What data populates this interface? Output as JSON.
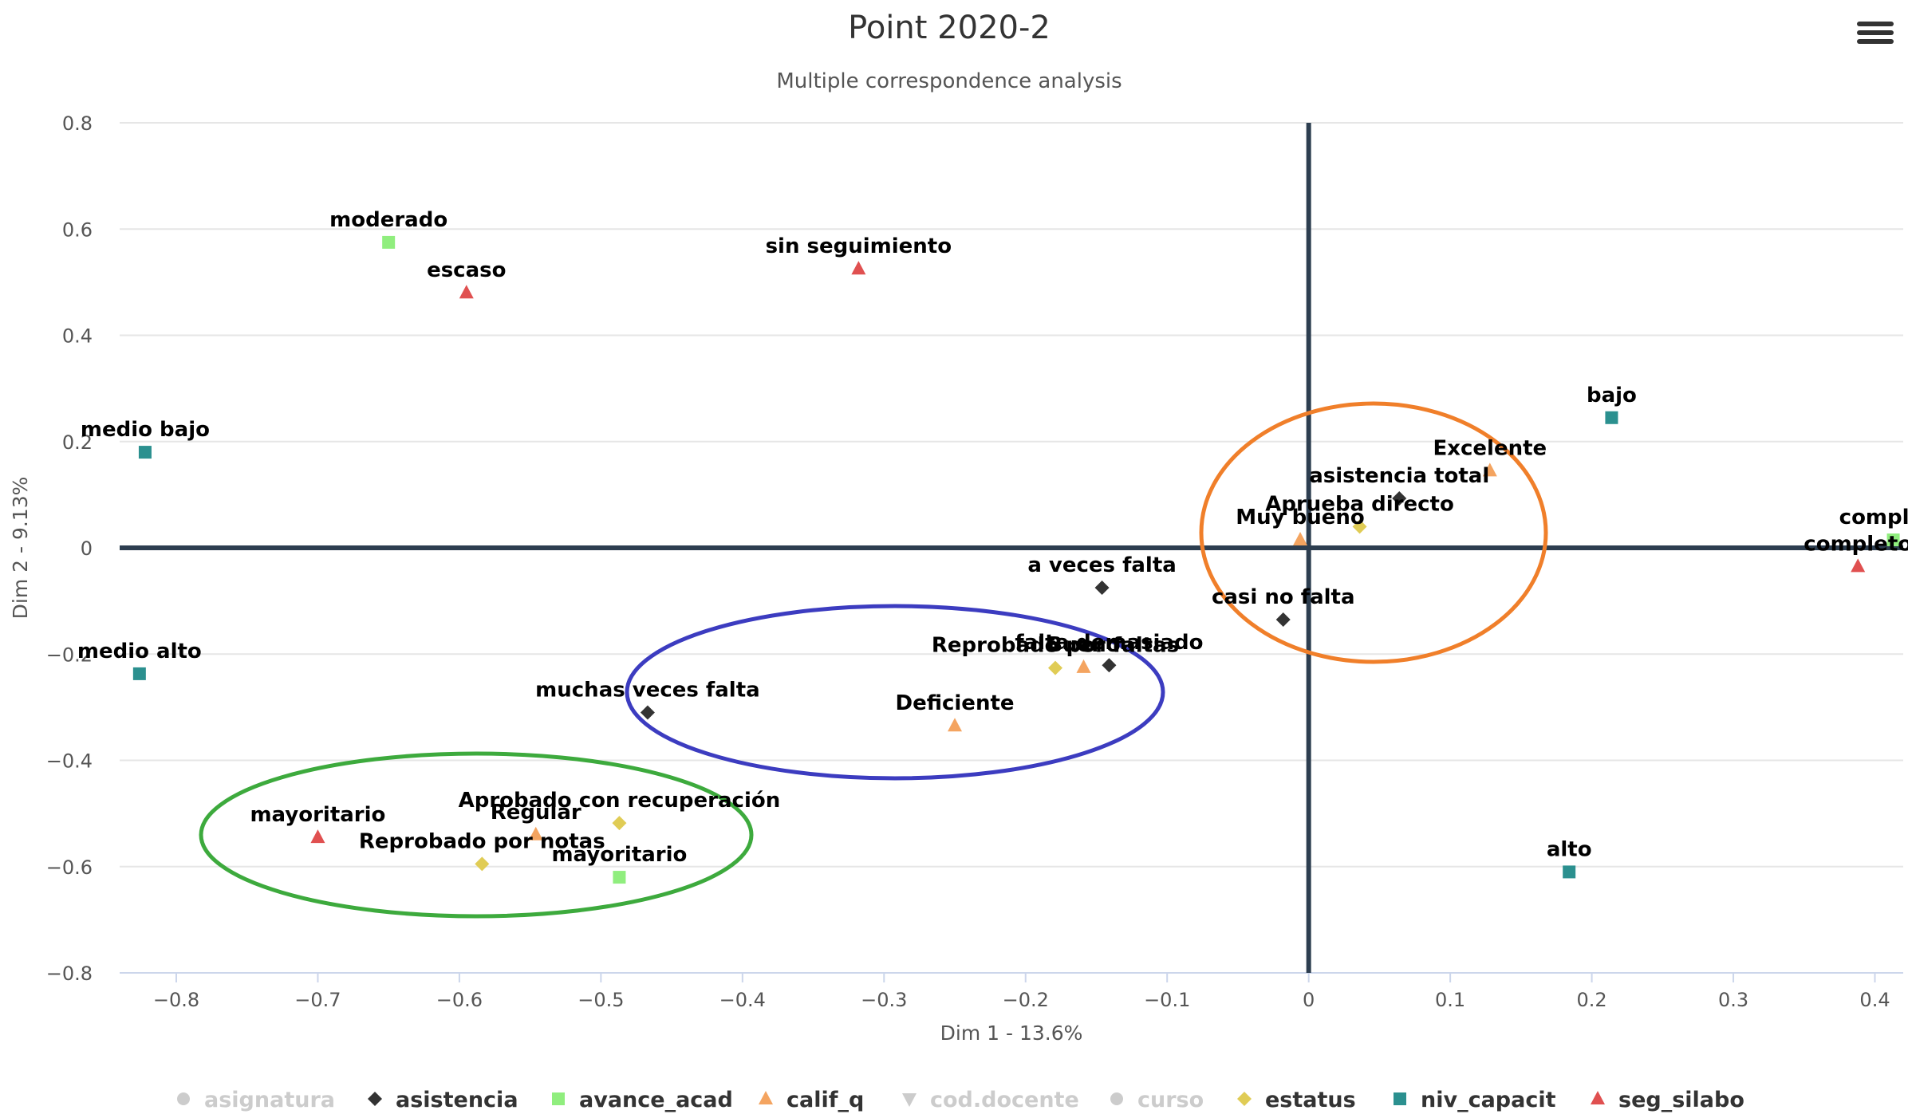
{
  "chart_data": {
    "type": "scatter",
    "title": "Point 2020-2",
    "subtitle": "Multiple correspondence analysis",
    "xlabel": "Dim 1 - 13.6%",
    "ylabel": "Dim 2 - 9.13%",
    "xlim": [
      -0.84,
      0.42
    ],
    "ylim": [
      -0.8,
      0.8
    ],
    "xticks": [
      -0.8,
      -0.7,
      -0.6,
      -0.5,
      -0.4,
      -0.3,
      -0.2,
      -0.1,
      0,
      0.1,
      0.2,
      0.3,
      0.4
    ],
    "xtick_labels": [
      "−0.8",
      "−0.7",
      "−0.6",
      "−0.5",
      "−0.4",
      "−0.3",
      "−0.2",
      "−0.1",
      "0",
      "0.1",
      "0.2",
      "0.3",
      "0.4"
    ],
    "yticks": [
      0.8,
      0.6,
      0.4,
      0.2,
      0,
      -0.2,
      -0.4,
      -0.6,
      -0.8
    ],
    "ytick_labels": [
      "0.8",
      "0.6",
      "0.4",
      "0.2",
      "0",
      "−0.2",
      "−0.4",
      "−0.6",
      "−0.8"
    ],
    "grid": true,
    "legend_position": "bottom",
    "series": [
      {
        "name": "asignatura",
        "symbol": "circle",
        "color": "#cccccc",
        "hidden": true,
        "points": []
      },
      {
        "name": "asistencia",
        "symbol": "diamond",
        "color": "#333333",
        "points": [
          {
            "label": "asistencia total",
            "x": 0.064,
            "y": 0.093
          },
          {
            "label": "a veces falta",
            "x": -0.146,
            "y": -0.075
          },
          {
            "label": "casi no falta",
            "x": -0.018,
            "y": -0.135
          },
          {
            "label": "falta demasiado",
            "x": -0.141,
            "y": -0.221
          },
          {
            "label": "muchas veces falta",
            "x": -0.467,
            "y": -0.31
          }
        ]
      },
      {
        "name": "avance_acad",
        "symbol": "square",
        "color": "#90ee7e",
        "points": [
          {
            "label": "moderado",
            "x": -0.65,
            "y": 0.575
          },
          {
            "label": "completo",
            "x": 0.413,
            "y": 0.015
          },
          {
            "label": "mayoritario",
            "x": -0.487,
            "y": -0.62
          }
        ]
      },
      {
        "name": "calif_q",
        "symbol": "triangle",
        "color": "#f4a460",
        "points": [
          {
            "label": "Excelente",
            "x": 0.128,
            "y": 0.145
          },
          {
            "label": "Muy bueno",
            "x": -0.006,
            "y": 0.015
          },
          {
            "label": "Bueno",
            "x": -0.159,
            "y": -0.225
          },
          {
            "label": "Deficiente",
            "x": -0.25,
            "y": -0.335
          },
          {
            "label": "Regular",
            "x": -0.546,
            "y": -0.54
          }
        ]
      },
      {
        "name": "cod.docente",
        "symbol": "triangle-down",
        "color": "#cccccc",
        "hidden": true,
        "points": []
      },
      {
        "name": "curso",
        "symbol": "circle",
        "color": "#cccccc",
        "hidden": true,
        "points": []
      },
      {
        "name": "estatus",
        "symbol": "diamond",
        "color": "#e0cc55",
        "points": [
          {
            "label": "Aprueba directo",
            "x": 0.036,
            "y": 0.04
          },
          {
            "label": "Reprobado por faltas",
            "x": -0.179,
            "y": -0.226
          },
          {
            "label": "Aprobado con recuperación",
            "x": -0.487,
            "y": -0.518
          },
          {
            "label": "Reprobado por notas",
            "x": -0.584,
            "y": -0.595
          }
        ]
      },
      {
        "name": "niv_capacit",
        "symbol": "square",
        "color": "#2b908f",
        "points": [
          {
            "label": "bajo",
            "x": 0.214,
            "y": 0.245
          },
          {
            "label": "medio bajo",
            "x": -0.822,
            "y": 0.18
          },
          {
            "label": "medio alto",
            "x": -0.826,
            "y": -0.237
          },
          {
            "label": "alto",
            "x": 0.184,
            "y": -0.61
          }
        ]
      },
      {
        "name": "seg_silabo",
        "symbol": "triangle",
        "color": "#e05050",
        "points": [
          {
            "label": "sin seguimiento",
            "x": -0.318,
            "y": 0.525
          },
          {
            "label": "escaso",
            "x": -0.595,
            "y": 0.48
          },
          {
            "label": "completo",
            "x": 0.388,
            "y": -0.035
          },
          {
            "label": "mayoritario",
            "x": -0.7,
            "y": -0.545
          }
        ]
      }
    ]
  }
}
